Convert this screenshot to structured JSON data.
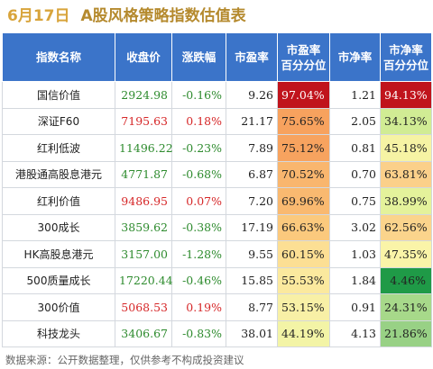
{
  "title": {
    "date": "6月17日",
    "text": "A股风格策略指数估值表"
  },
  "headers": {
    "name": "指数名称",
    "close": "收盘价",
    "change": "涨跌幅",
    "pe": "市盈率",
    "pe_pct": [
      "市盈率",
      "百分分位"
    ],
    "pb": "市净率",
    "pb_pct": [
      "市净率",
      "百分分位"
    ]
  },
  "footer": "数据来源：公开数据整理，仅供参考不构成投资建议",
  "colors": {
    "header_bg": "#3b74c9",
    "up": "#d62728",
    "down": "#2e8b2e"
  },
  "chart_data": {
    "type": "table",
    "columns": [
      "指数名称",
      "收盘价",
      "涨跌幅",
      "市盈率",
      "市盈率百分分位",
      "市净率",
      "市净率百分分位"
    ],
    "rows": [
      {
        "name": "国信价值",
        "close": "2924.98",
        "change": "-0.16%",
        "pe": "9.26",
        "pe_pct": "97.04%",
        "pb": "1.21",
        "pb_pct": "94.13%",
        "pe_color": "#c0141c",
        "pb_color": "#c0141c",
        "pe_text": "#ffffff",
        "pb_text": "#ffffff",
        "close_dir": "down",
        "change_dir": "down"
      },
      {
        "name": "深证F60",
        "close": "7195.63",
        "change": "0.18%",
        "pe": "21.17",
        "pe_pct": "75.65%",
        "pb": "2.05",
        "pb_pct": "34.13%",
        "pe_color": "#f7a25e",
        "pb_color": "#d1ec94",
        "pe_text": "#222222",
        "pb_text": "#222222",
        "close_dir": "up",
        "change_dir": "up"
      },
      {
        "name": "红利低波",
        "close": "11496.22",
        "change": "-0.23%",
        "pe": "7.89",
        "pe_pct": "75.12%",
        "pb": "0.81",
        "pb_pct": "45.18%",
        "pe_color": "#f7a35f",
        "pb_color": "#f6f3a4",
        "pe_text": "#222222",
        "pb_text": "#222222",
        "close_dir": "down",
        "change_dir": "down"
      },
      {
        "name": "港股通高股息港元",
        "close": "4771.87",
        "change": "-0.68%",
        "pe": "6.87",
        "pe_pct": "70.52%",
        "pb": "0.70",
        "pb_pct": "63.81%",
        "pe_color": "#f9b66e",
        "pb_color": "#fbd08a",
        "pe_text": "#222222",
        "pb_text": "#222222",
        "close_dir": "down",
        "change_dir": "down"
      },
      {
        "name": "红利价值",
        "close": "9486.95",
        "change": "0.07%",
        "pe": "7.20",
        "pe_pct": "69.96%",
        "pb": "0.75",
        "pb_pct": "38.99%",
        "pe_color": "#f9b970",
        "pb_color": "#e4f29b",
        "pe_text": "#222222",
        "pb_text": "#222222",
        "close_dir": "up",
        "change_dir": "up"
      },
      {
        "name": "300成长",
        "close": "3859.62",
        "change": "-0.38%",
        "pe": "17.19",
        "pe_pct": "66.63%",
        "pb": "3.02",
        "pb_pct": "62.56%",
        "pe_color": "#fbc97d",
        "pb_color": "#fbd48c",
        "pe_text": "#222222",
        "pb_text": "#222222",
        "close_dir": "down",
        "change_dir": "down"
      },
      {
        "name": "HK高股息港元",
        "close": "3157.00",
        "change": "-1.28%",
        "pe": "9.55",
        "pe_pct": "60.15%",
        "pb": "1.03",
        "pb_pct": "47.35%",
        "pe_color": "#fcdf94",
        "pb_color": "#faf4a8",
        "pe_text": "#222222",
        "pb_text": "#222222",
        "close_dir": "down",
        "change_dir": "down"
      },
      {
        "name": "500质量成长",
        "close": "17220.44",
        "change": "-0.46%",
        "pe": "15.85",
        "pe_pct": "55.53%",
        "pb": "1.84",
        "pb_pct": "4.46%",
        "pe_color": "#fbe99e",
        "pb_color": "#1f9a47",
        "pe_text": "#222222",
        "pb_text": "#222222",
        "close_dir": "down",
        "change_dir": "down"
      },
      {
        "name": "300价值",
        "close": "5068.53",
        "change": "0.19%",
        "pe": "8.77",
        "pe_pct": "53.15%",
        "pb": "0.91",
        "pb_pct": "24.31%",
        "pe_color": "#f8f0a6",
        "pb_color": "#a7d98a",
        "pe_text": "#222222",
        "pb_text": "#222222",
        "close_dir": "up",
        "change_dir": "up"
      },
      {
        "name": "科技龙头",
        "close": "3406.67",
        "change": "-0.83%",
        "pe": "38.01",
        "pe_pct": "44.19%",
        "pb": "4.13",
        "pb_pct": "21.86%",
        "pe_color": "#f3f4a6",
        "pb_color": "#98d185",
        "pe_text": "#222222",
        "pb_text": "#222222",
        "close_dir": "down",
        "change_dir": "down"
      }
    ]
  }
}
